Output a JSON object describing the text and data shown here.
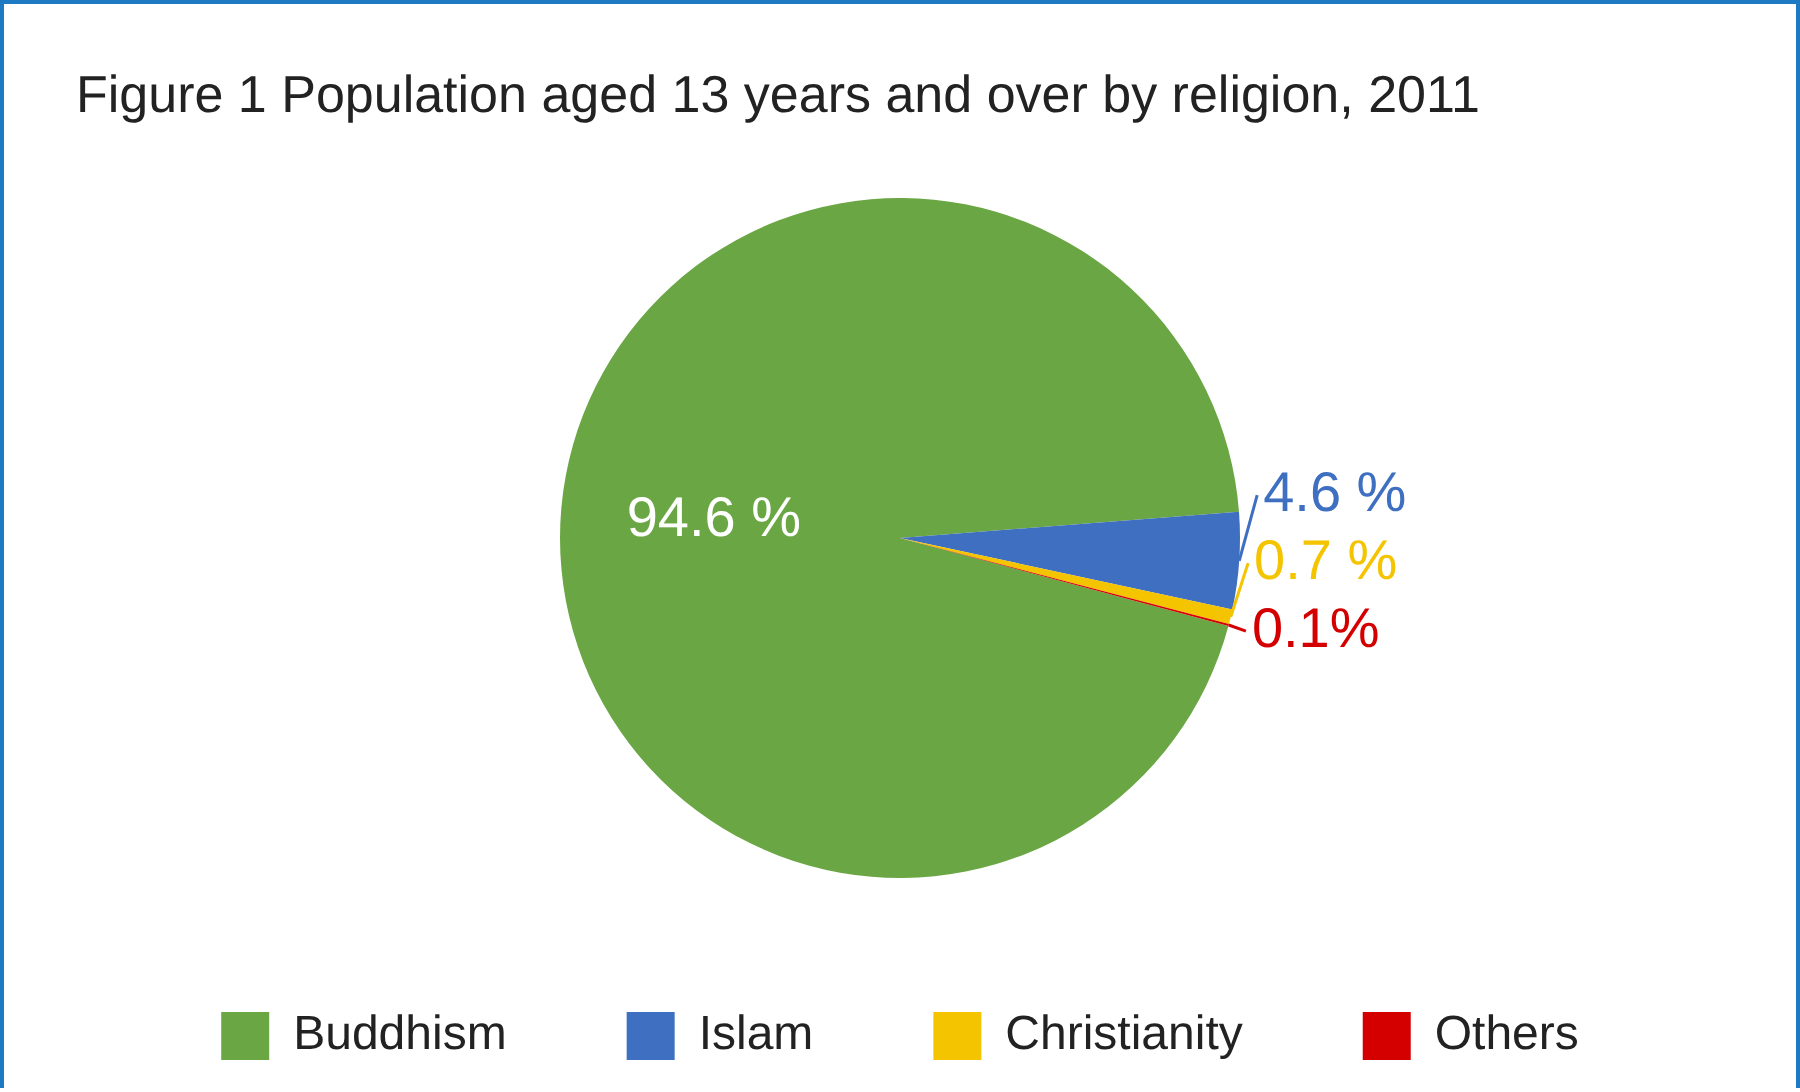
{
  "chart_data": {
    "type": "pie",
    "title": "Figure 1 Population aged 13 years and over by religion, 2011",
    "categories": [
      "Buddhism",
      "Islam",
      "Christianity",
      "Others"
    ],
    "values": [
      94.6,
      4.6,
      0.7,
      0.1
    ],
    "colors": [
      "#6aa744",
      "#3f6fc0",
      "#f5c400",
      "#d40000"
    ],
    "value_labels": [
      "94.6 %",
      "4.6 %",
      "0.7 %",
      "0.1%"
    ],
    "legend": "bottom"
  }
}
